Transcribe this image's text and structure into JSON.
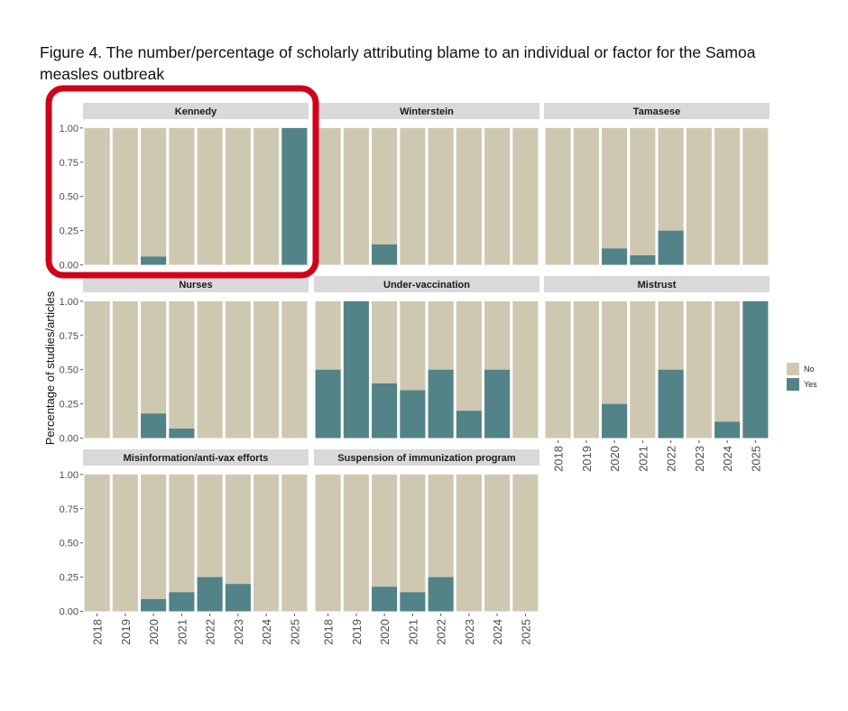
{
  "caption": "Figure 4. The number/percentage of scholarly attributing blame to an individual or factor for the Samoa measles outbreak",
  "colors": {
    "no": "#CFC8B1",
    "yes": "#528388",
    "strip": "#D9D9D9",
    "highlight": "#D0021B"
  },
  "chart_data": {
    "type": "bar",
    "stacked": true,
    "ylabel": "Percentage of studies/articles",
    "ylim": [
      0,
      1
    ],
    "yticks": [
      "0.00",
      "0.25",
      "0.50",
      "0.75",
      "1.00"
    ],
    "categories": [
      "2018",
      "2019",
      "2020",
      "2021",
      "2022",
      "2023",
      "2024",
      "2025"
    ],
    "legend": [
      {
        "key": "no",
        "label": "No"
      },
      {
        "key": "yes",
        "label": "Yes"
      }
    ],
    "highlighted_panel": "Kennedy",
    "panels": [
      {
        "name": "Kennedy",
        "yes": [
          0,
          0,
          0.06,
          0,
          0,
          0,
          0,
          1.0
        ]
      },
      {
        "name": "Winterstein",
        "yes": [
          0,
          0,
          0.15,
          0,
          0,
          0,
          0,
          0
        ]
      },
      {
        "name": "Tamasese",
        "yes": [
          0,
          0,
          0.12,
          0.07,
          0.25,
          0,
          0,
          0
        ]
      },
      {
        "name": "Nurses",
        "yes": [
          0,
          0,
          0.18,
          0.07,
          0,
          0,
          0,
          0
        ]
      },
      {
        "name": "Under-vaccination",
        "yes": [
          0.5,
          1.0,
          0.4,
          0.35,
          0.5,
          0.2,
          0.5,
          0
        ]
      },
      {
        "name": "Mistrust",
        "yes": [
          0,
          0,
          0.25,
          0,
          0.5,
          0,
          0.12,
          1.0
        ]
      },
      {
        "name": "Misinformation/anti-vax efforts",
        "yes": [
          0,
          0,
          0.09,
          0.14,
          0.25,
          0.2,
          0,
          0
        ]
      },
      {
        "name": "Suspension of immunization program",
        "yes": [
          0,
          0,
          0.18,
          0.14,
          0.25,
          0,
          0,
          0
        ]
      }
    ]
  }
}
